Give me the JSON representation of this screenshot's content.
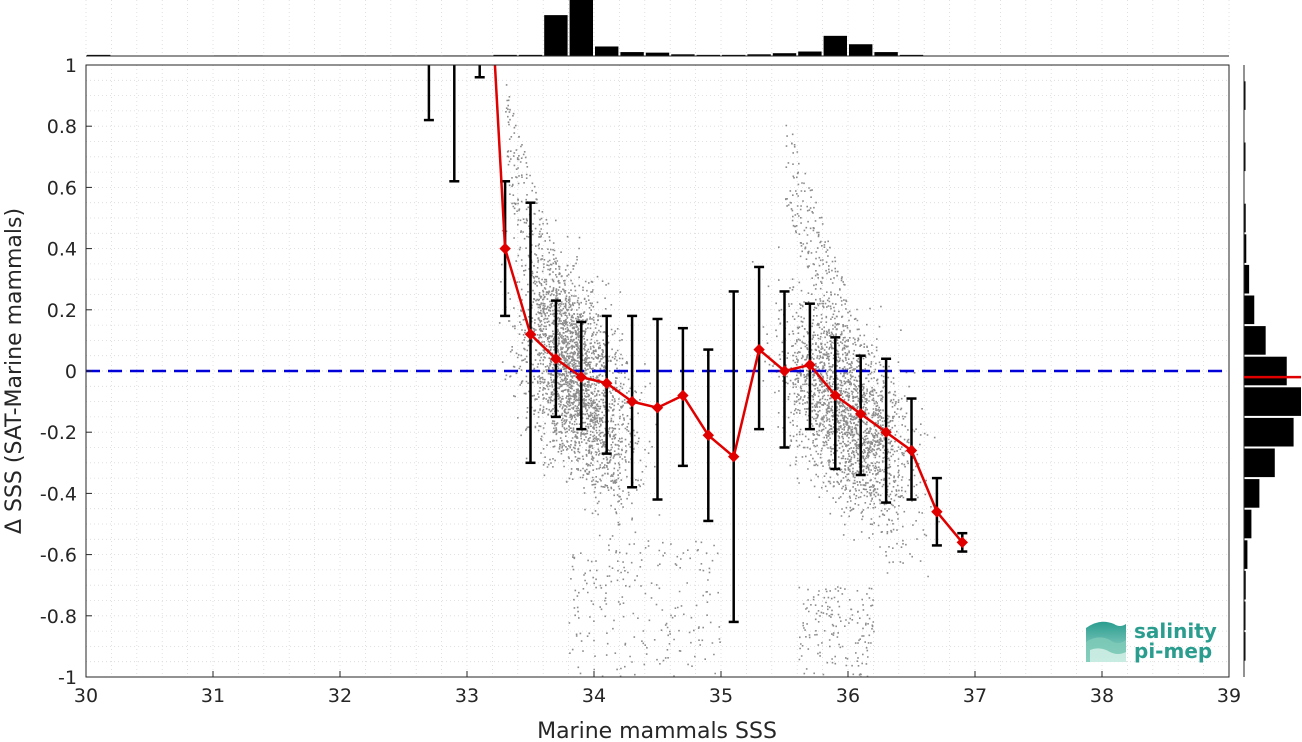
{
  "chart_data": {
    "type": "scatter",
    "xlabel": "Marine mammals SSS",
    "ylabel": "Δ SSS (SAT-Marine mammals)",
    "xlim": [
      30,
      39
    ],
    "ylim": [
      -1,
      1
    ],
    "x_ticks": [
      "30",
      "31",
      "32",
      "33",
      "34",
      "35",
      "36",
      "37",
      "38",
      "39"
    ],
    "y_ticks": [
      "-1",
      "-0.8",
      "-0.6",
      "-0.4",
      "-0.2",
      "0",
      "0.2",
      "0.4",
      "0.6",
      "0.8",
      "1"
    ],
    "grid": true,
    "zero_line": {
      "y": 0,
      "color": "#0000d8",
      "style": "dashed"
    },
    "scatter_color": "#8c8c8c",
    "scatter_clusters": [
      {
        "x_range": [
          33.2,
          34.6
        ],
        "y_center_at_33_8": 0.0,
        "slope": -0.35,
        "spread": 0.18
      },
      {
        "x_range": [
          35.4,
          36.8
        ],
        "y_center_at_36": -0.15,
        "slope": -0.35,
        "spread": 0.16
      }
    ],
    "bin_means": {
      "color": "#e00000",
      "x": [
        33.3,
        33.5,
        33.7,
        33.9,
        34.1,
        34.3,
        34.5,
        34.7,
        34.9,
        35.1,
        35.3,
        35.5,
        35.7,
        35.9,
        36.1,
        36.3,
        36.5,
        36.7,
        36.9
      ],
      "y": [
        0.4,
        0.12,
        0.04,
        -0.02,
        -0.04,
        -0.1,
        -0.12,
        -0.08,
        -0.21,
        -0.28,
        0.07,
        0.0,
        0.02,
        -0.08,
        -0.14,
        -0.2,
        -0.26,
        -0.46,
        -0.56
      ],
      "y_low": [
        0.18,
        -0.3,
        -0.15,
        -0.19,
        -0.27,
        -0.38,
        -0.42,
        -0.31,
        -0.49,
        -0.82,
        -0.19,
        -0.25,
        -0.19,
        -0.32,
        -0.34,
        -0.43,
        -0.42,
        -0.57,
        -0.59
      ],
      "y_high": [
        0.62,
        0.55,
        0.23,
        0.16,
        0.18,
        0.18,
        0.17,
        0.14,
        0.07,
        0.26,
        0.34,
        0.26,
        0.22,
        0.11,
        0.05,
        0.04,
        -0.09,
        -0.35,
        -0.53
      ]
    },
    "bin_means_offscale": {
      "x": [
        32.7,
        32.9,
        33.1
      ],
      "y_low": [
        0.82,
        0.62,
        0.96
      ],
      "x_top_line_end": 33.22
    },
    "top_histogram": {
      "bins_x": [
        30.1,
        31.1,
        31.3,
        32.1,
        32.3,
        32.5,
        32.7,
        32.9,
        33.1,
        33.3,
        33.5,
        33.7,
        33.9,
        34.1,
        34.3,
        34.5,
        34.7,
        34.9,
        35.1,
        35.3,
        35.5,
        35.7,
        35.9,
        36.1,
        36.3,
        36.5
      ],
      "heights": [
        0.02,
        0.01,
        0.01,
        0.01,
        0.01,
        0.01,
        0.01,
        0.01,
        0.01,
        0.02,
        0.02,
        0.73,
        1.0,
        0.17,
        0.07,
        0.06,
        0.03,
        0.02,
        0.02,
        0.03,
        0.05,
        0.08,
        0.36,
        0.21,
        0.07,
        0.02
      ]
    },
    "right_histogram": {
      "bins_y": [
        0.9,
        0.7,
        0.5,
        0.4,
        0.3,
        0.2,
        0.1,
        0.0,
        -0.1,
        -0.2,
        -0.3,
        -0.4,
        -0.5,
        -0.6,
        -0.7,
        -0.8,
        -0.9
      ],
      "widths": [
        0.02,
        0.02,
        0.03,
        0.04,
        0.09,
        0.18,
        0.38,
        0.75,
        1.0,
        0.87,
        0.54,
        0.27,
        0.13,
        0.06,
        0.03,
        0.02,
        0.02
      ],
      "mean_line_y": -0.02,
      "mean_line_color": "#e00000"
    },
    "logo": {
      "line1": "salinity",
      "line2": "pi-mep",
      "color": "#2a9d8f"
    }
  }
}
